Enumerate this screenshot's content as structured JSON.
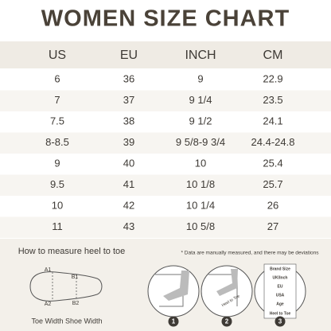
{
  "header": {
    "title": "WOMEN SIZE CHART"
  },
  "table": {
    "columns": [
      "US",
      "EU",
      "INCH",
      "CM"
    ],
    "rows": [
      [
        "6",
        "36",
        "9",
        "22.9"
      ],
      [
        "7",
        "37",
        "9 1/4",
        "23.5"
      ],
      [
        "7.5",
        "38",
        "9 1/2",
        "24.1"
      ],
      [
        "8-8.5",
        "39",
        "9 5/8-9 3/4",
        "24.4-24.8"
      ],
      [
        "9",
        "40",
        "10",
        "25.4"
      ],
      [
        "9.5",
        "41",
        "10 1/8",
        "25.7"
      ],
      [
        "10",
        "42",
        "10 1/4",
        "26"
      ],
      [
        "11",
        "43",
        "10 5/8",
        "27"
      ]
    ]
  },
  "measure": {
    "title": "How to measure heel to toe",
    "labels": [
      "A1",
      "B1",
      "A2",
      "B2"
    ],
    "caption": "Toe Width Shoe Width"
  },
  "note": "* Data are manually measured, and there may be deviations",
  "steps": {
    "numbers": [
      "1",
      "2",
      "3"
    ],
    "ruler_label": "Heel to Toe",
    "tag": [
      "Brand Size",
      "UK/Inch",
      "EU",
      "USA",
      "Age",
      "Heel to Toe"
    ]
  }
}
